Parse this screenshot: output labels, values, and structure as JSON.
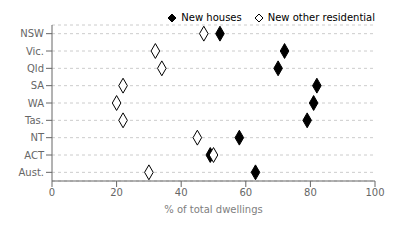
{
  "chart_data": {
    "type": "scatter",
    "categories": [
      "NSW",
      "Vic.",
      "Qld",
      "SA",
      "WA",
      "Tas.",
      "NT",
      "ACT",
      "Aust."
    ],
    "series": [
      {
        "name": "New houses",
        "color": "#000000",
        "marker": "diamond",
        "values": [
          52,
          72,
          70,
          82,
          81,
          79,
          58,
          49,
          63
        ]
      },
      {
        "name": "New other residential",
        "color": "#000000",
        "marker": "open_diamond",
        "values": [
          47,
          32,
          34,
          22,
          20,
          22,
          45,
          50,
          30
        ]
      }
    ],
    "xlabel": "% of total dwellings",
    "xlim": [
      0,
      100
    ],
    "xticks": [
      0,
      20,
      40,
      60,
      80,
      100
    ],
    "grid": true,
    "legend": "upper right"
  }
}
